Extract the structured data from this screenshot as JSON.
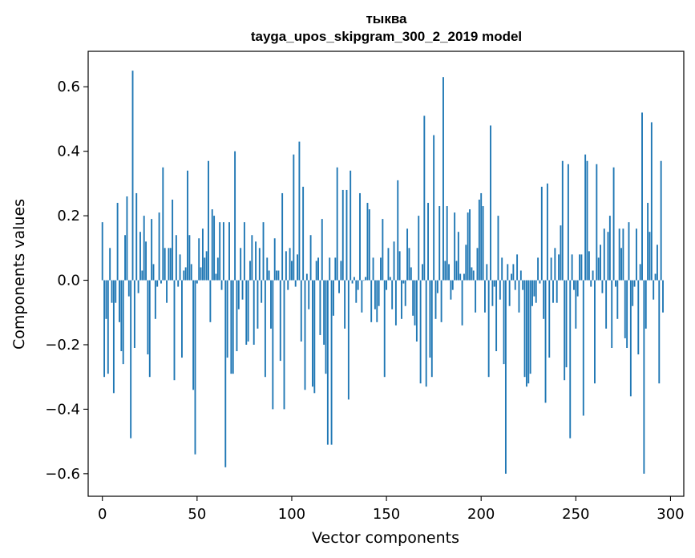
{
  "chart_data": {
    "type": "bar",
    "title": "тыква",
    "subtitle": "tayga_upos_skipgram_300_2_2019 model",
    "xlabel": "Vector components",
    "ylabel": "Components values",
    "xlim": [
      -7.5,
      307
    ],
    "ylim": [
      -0.67,
      0.71
    ],
    "xticks": [
      0,
      50,
      100,
      150,
      200,
      250,
      300
    ],
    "xtick_labels": [
      "0",
      "50",
      "100",
      "150",
      "200",
      "250",
      "300"
    ],
    "yticks": [
      -0.6,
      -0.4,
      -0.2,
      0.0,
      0.2,
      0.4,
      0.6
    ],
    "ytick_labels": [
      "−0.6",
      "−0.4",
      "−0.2",
      "0.0",
      "0.2",
      "0.4",
      "0.6"
    ],
    "bar_color": "#1f77b4",
    "values": [
      0.18,
      -0.3,
      -0.12,
      -0.29,
      0.1,
      -0.07,
      -0.35,
      -0.07,
      0.24,
      -0.13,
      -0.22,
      -0.26,
      0.14,
      0.26,
      -0.05,
      -0.49,
      0.65,
      -0.21,
      0.27,
      -0.04,
      0.15,
      0.03,
      0.2,
      0.12,
      -0.23,
      -0.3,
      0.19,
      0.05,
      -0.12,
      -0.02,
      0.21,
      -0.01,
      0.35,
      0.1,
      -0.07,
      0.1,
      0.1,
      0.25,
      -0.31,
      0.14,
      -0.02,
      0.08,
      -0.24,
      0.03,
      0.04,
      0.34,
      0.14,
      0.05,
      -0.34,
      -0.54,
      -0.01,
      0.13,
      0.04,
      0.16,
      0.07,
      0.09,
      0.37,
      -0.13,
      0.22,
      0.2,
      0.02,
      0.07,
      0.18,
      -0.03,
      0.18,
      -0.58,
      -0.24,
      0.18,
      -0.29,
      -0.29,
      0.4,
      -0.22,
      -0.09,
      0.1,
      -0.06,
      0.18,
      -0.2,
      -0.19,
      0.06,
      0.14,
      -0.2,
      0.12,
      -0.15,
      0.1,
      -0.07,
      0.18,
      -0.3,
      0.07,
      0.03,
      -0.15,
      -0.4,
      0.13,
      0.03,
      0.03,
      -0.25,
      0.27,
      -0.4,
      0.09,
      -0.03,
      0.1,
      0.06,
      0.39,
      -0.02,
      0.08,
      0.43,
      -0.19,
      0.29,
      -0.34,
      0.02,
      -0.09,
      0.14,
      -0.33,
      -0.35,
      0.06,
      0.07,
      -0.17,
      0.19,
      -0.2,
      -0.29,
      -0.51,
      0.07,
      -0.51,
      -0.11,
      0.07,
      0.35,
      -0.04,
      0.06,
      0.28,
      -0.15,
      0.28,
      -0.37,
      0.34,
      -0.01,
      0.01,
      -0.07,
      -0.03,
      0.27,
      -0.1,
      0.0,
      0.01,
      0.24,
      0.22,
      -0.13,
      0.07,
      -0.09,
      -0.13,
      -0.08,
      0.07,
      0.19,
      -0.3,
      -0.03,
      0.1,
      0.01,
      -0.09,
      0.12,
      -0.14,
      0.31,
      0.09,
      -0.12,
      -0.01,
      -0.08,
      0.16,
      0.1,
      0.04,
      -0.11,
      -0.14,
      -0.19,
      0.2,
      -0.32,
      0.05,
      0.51,
      -0.33,
      0.24,
      -0.24,
      -0.3,
      0.45,
      -0.12,
      -0.04,
      0.23,
      -0.13,
      0.63,
      0.06,
      0.23,
      0.05,
      -0.06,
      -0.03,
      0.21,
      0.06,
      0.15,
      0.02,
      -0.14,
      0.02,
      0.11,
      0.21,
      0.22,
      0.04,
      0.03,
      -0.1,
      0.1,
      0.25,
      0.27,
      0.23,
      -0.1,
      0.05,
      -0.3,
      0.48,
      -0.08,
      -0.02,
      -0.22,
      0.2,
      -0.06,
      0.07,
      -0.26,
      -0.6,
      0.05,
      -0.08,
      0.02,
      0.05,
      -0.03,
      0.08,
      -0.1,
      0.03,
      -0.03,
      -0.3,
      -0.33,
      -0.32,
      -0.29,
      -0.08,
      -0.05,
      -0.07,
      0.07,
      -0.01,
      0.29,
      -0.12,
      -0.38,
      0.3,
      -0.24,
      0.07,
      -0.07,
      0.1,
      -0.07,
      0.08,
      0.17,
      0.37,
      -0.31,
      -0.27,
      0.36,
      -0.49,
      0.08,
      -0.03,
      -0.15,
      -0.05,
      0.08,
      0.08,
      -0.42,
      0.39,
      0.37,
      0.09,
      -0.02,
      0.03,
      -0.32,
      0.36,
      0.07,
      0.11,
      -0.04,
      0.16,
      -0.15,
      0.15,
      0.2,
      -0.21,
      0.35,
      -0.02,
      -0.12,
      0.16,
      0.1,
      0.16,
      -0.18,
      -0.21,
      0.18,
      -0.36,
      -0.08,
      -0.02,
      0.16,
      -0.23,
      0.05,
      0.52,
      -0.6,
      -0.15,
      0.24,
      0.15,
      0.49,
      -0.06,
      0.02,
      0.11,
      -0.32,
      0.37,
      -0.1
    ]
  }
}
